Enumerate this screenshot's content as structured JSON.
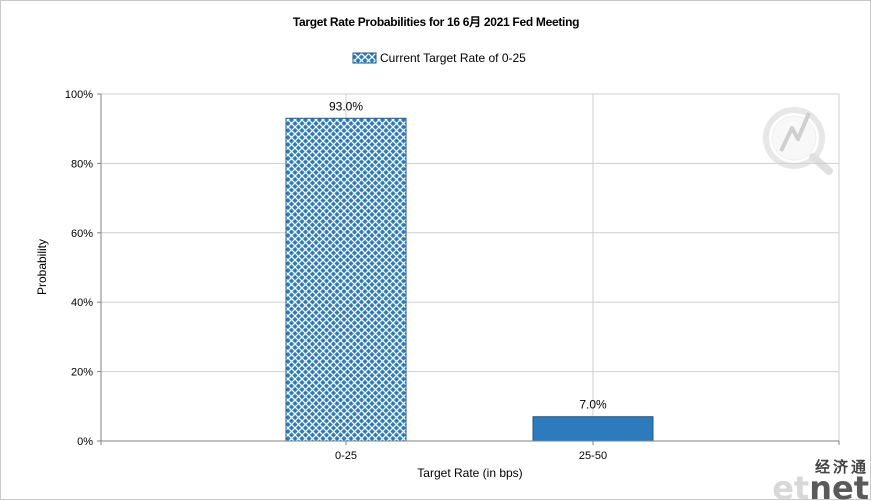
{
  "chart_data": {
    "type": "bar",
    "title": "Target Rate Probabilities for 16 6月  2021  Fed Meeting",
    "legend": {
      "label": "Current Target Rate of 0-25",
      "position": "top-center"
    },
    "xlabel": "Target Rate (in bps)",
    "ylabel": "Probability",
    "categories": [
      "0-25",
      "25-50"
    ],
    "series": [
      {
        "name": "Current Target Rate of 0-25",
        "values": [
          93.0,
          7.0
        ],
        "styles": [
          "hatched",
          "solid"
        ]
      }
    ],
    "data_labels": [
      "93.0%",
      "7.0%"
    ],
    "ylim": [
      0,
      100
    ],
    "yticks": [
      0,
      20,
      40,
      60,
      80,
      100
    ],
    "ytick_labels": [
      "0%",
      "20%",
      "40%",
      "60%",
      "80%",
      "100%"
    ],
    "grid": true,
    "colors": {
      "bar": "#2b7bbd",
      "hatch": "#ffffff",
      "grid": "#cfcfcf",
      "axis": "#808080"
    }
  },
  "watermark": {
    "latin": "etnet",
    "latin_part1": "et",
    "latin_part2": "net",
    "chinese": "经济通"
  },
  "logo_icon": "q-magnifier-icon"
}
